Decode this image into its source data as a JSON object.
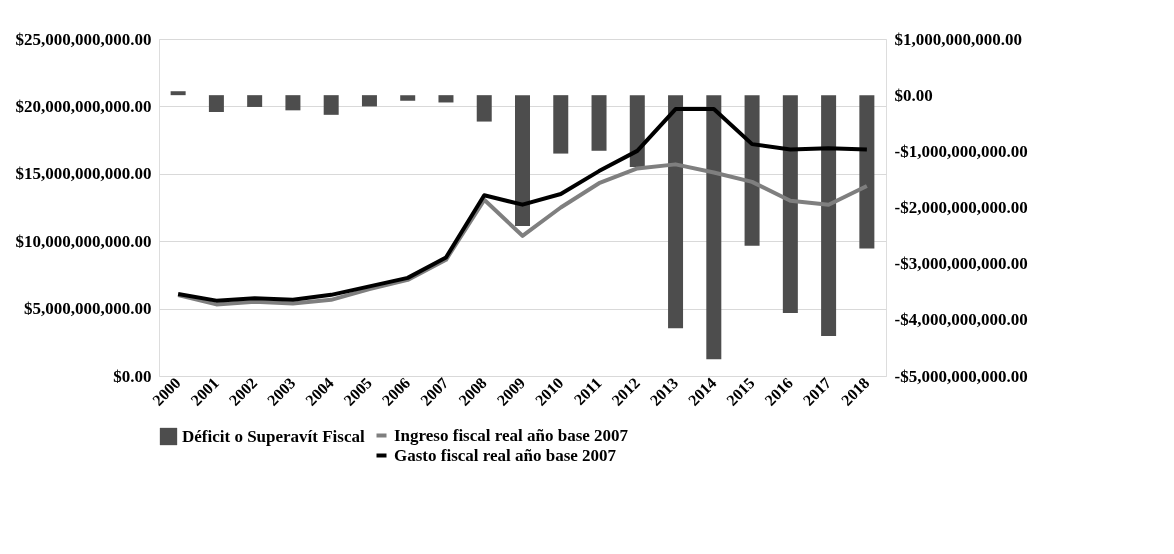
{
  "chart_data": {
    "type": "bar",
    "categories": [
      "2000",
      "2001",
      "2002",
      "2003",
      "2004",
      "2005",
      "2006",
      "2007",
      "2008",
      "2009",
      "2010",
      "2011",
      "2012",
      "2013",
      "2014",
      "2015",
      "2016",
      "2017",
      "2018"
    ],
    "series": [
      {
        "name": "Déficit o Superavít Fiscal",
        "axis": "y2",
        "color": "#4d4d4d",
        "values": [
          70000000,
          -300000000,
          -210000000,
          -270000000,
          -350000000,
          -200000000,
          -100000000,
          -130000000,
          -470000000,
          -2330000000,
          -1040000000,
          -990000000,
          -1280000000,
          -4150000000,
          -4700000000,
          -2680000000,
          -3880000000,
          -4290000000,
          -2730000000
        ]
      },
      {
        "name": "Ingreso fiscal real año base 2007",
        "type": "line",
        "color": "#7f7f7f",
        "values": [
          6000000000,
          5310000000,
          5500000000,
          5370000000,
          5650000000,
          6450000000,
          7130000000,
          8620000000,
          13070000000,
          10400000000,
          12500000000,
          14300000000,
          15400000000,
          15700000000,
          15100000000,
          14400000000,
          13000000000,
          12700000000,
          14100000000
        ]
      },
      {
        "name": "Gasto fiscal real año base 2007",
        "type": "line",
        "color": "#000000",
        "values": [
          6080000000,
          5590000000,
          5760000000,
          5650000000,
          6020000000,
          6650000000,
          7280000000,
          8790000000,
          13410000000,
          12710000000,
          13500000000,
          15200000000,
          16700000000,
          19800000000,
          19800000000,
          17200000000,
          16800000000,
          16900000000,
          16800000000
        ]
      }
    ],
    "ylim": [
      0,
      25000000000
    ],
    "yticks": [
      {
        "value": 0,
        "label": "$0.00"
      },
      {
        "value": 5000000000,
        "label": "$5,000,000,000.00"
      },
      {
        "value": 10000000000,
        "label": "$10,000,000,000.00"
      },
      {
        "value": 15000000000,
        "label": "$15,000,000,000.00"
      },
      {
        "value": 20000000000,
        "label": "$20,000,000,000.00"
      },
      {
        "value": 25000000000,
        "label": "$25,000,000,000.00"
      }
    ],
    "y2lim": [
      -5000000000,
      1000000000
    ],
    "y2ticks": [
      {
        "value": -5000000000,
        "label": "-$5,000,000,000.00"
      },
      {
        "value": -4000000000,
        "label": "-$4,000,000,000.00"
      },
      {
        "value": -3000000000,
        "label": "-$3,000,000,000.00"
      },
      {
        "value": -2000000000,
        "label": "-$2,000,000,000.00"
      },
      {
        "value": -1000000000,
        "label": "-$1,000,000,000.00"
      },
      {
        "value": 0,
        "label": "$0.00"
      },
      {
        "value": 1000000000,
        "label": "$1,000,000,000.00"
      }
    ],
    "grid": "y",
    "legend": "bottom",
    "marker": "none",
    "line_style": "solid"
  }
}
